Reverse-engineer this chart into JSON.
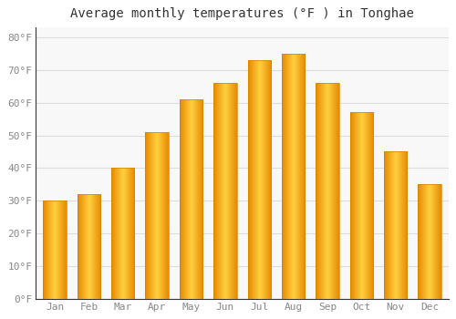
{
  "title": "Average monthly temperatures (°F ) in Tonghae",
  "months": [
    "Jan",
    "Feb",
    "Mar",
    "Apr",
    "May",
    "Jun",
    "Jul",
    "Aug",
    "Sep",
    "Oct",
    "Nov",
    "Dec"
  ],
  "values": [
    30,
    32,
    40,
    51,
    61,
    66,
    73,
    75,
    66,
    57,
    45,
    35
  ],
  "bar_color_main": "#FFA500",
  "bar_color_light": "#FFD040",
  "bar_edge_color": "#CC7700",
  "background_color": "#FFFFFF",
  "plot_bg_color": "#F8F8F8",
  "grid_color": "#DDDDDD",
  "yticks": [
    0,
    10,
    20,
    30,
    40,
    50,
    60,
    70,
    80
  ],
  "ylim": [
    0,
    83
  ],
  "title_fontsize": 10,
  "tick_fontsize": 8,
  "font_color": "#888888",
  "title_color": "#333333"
}
